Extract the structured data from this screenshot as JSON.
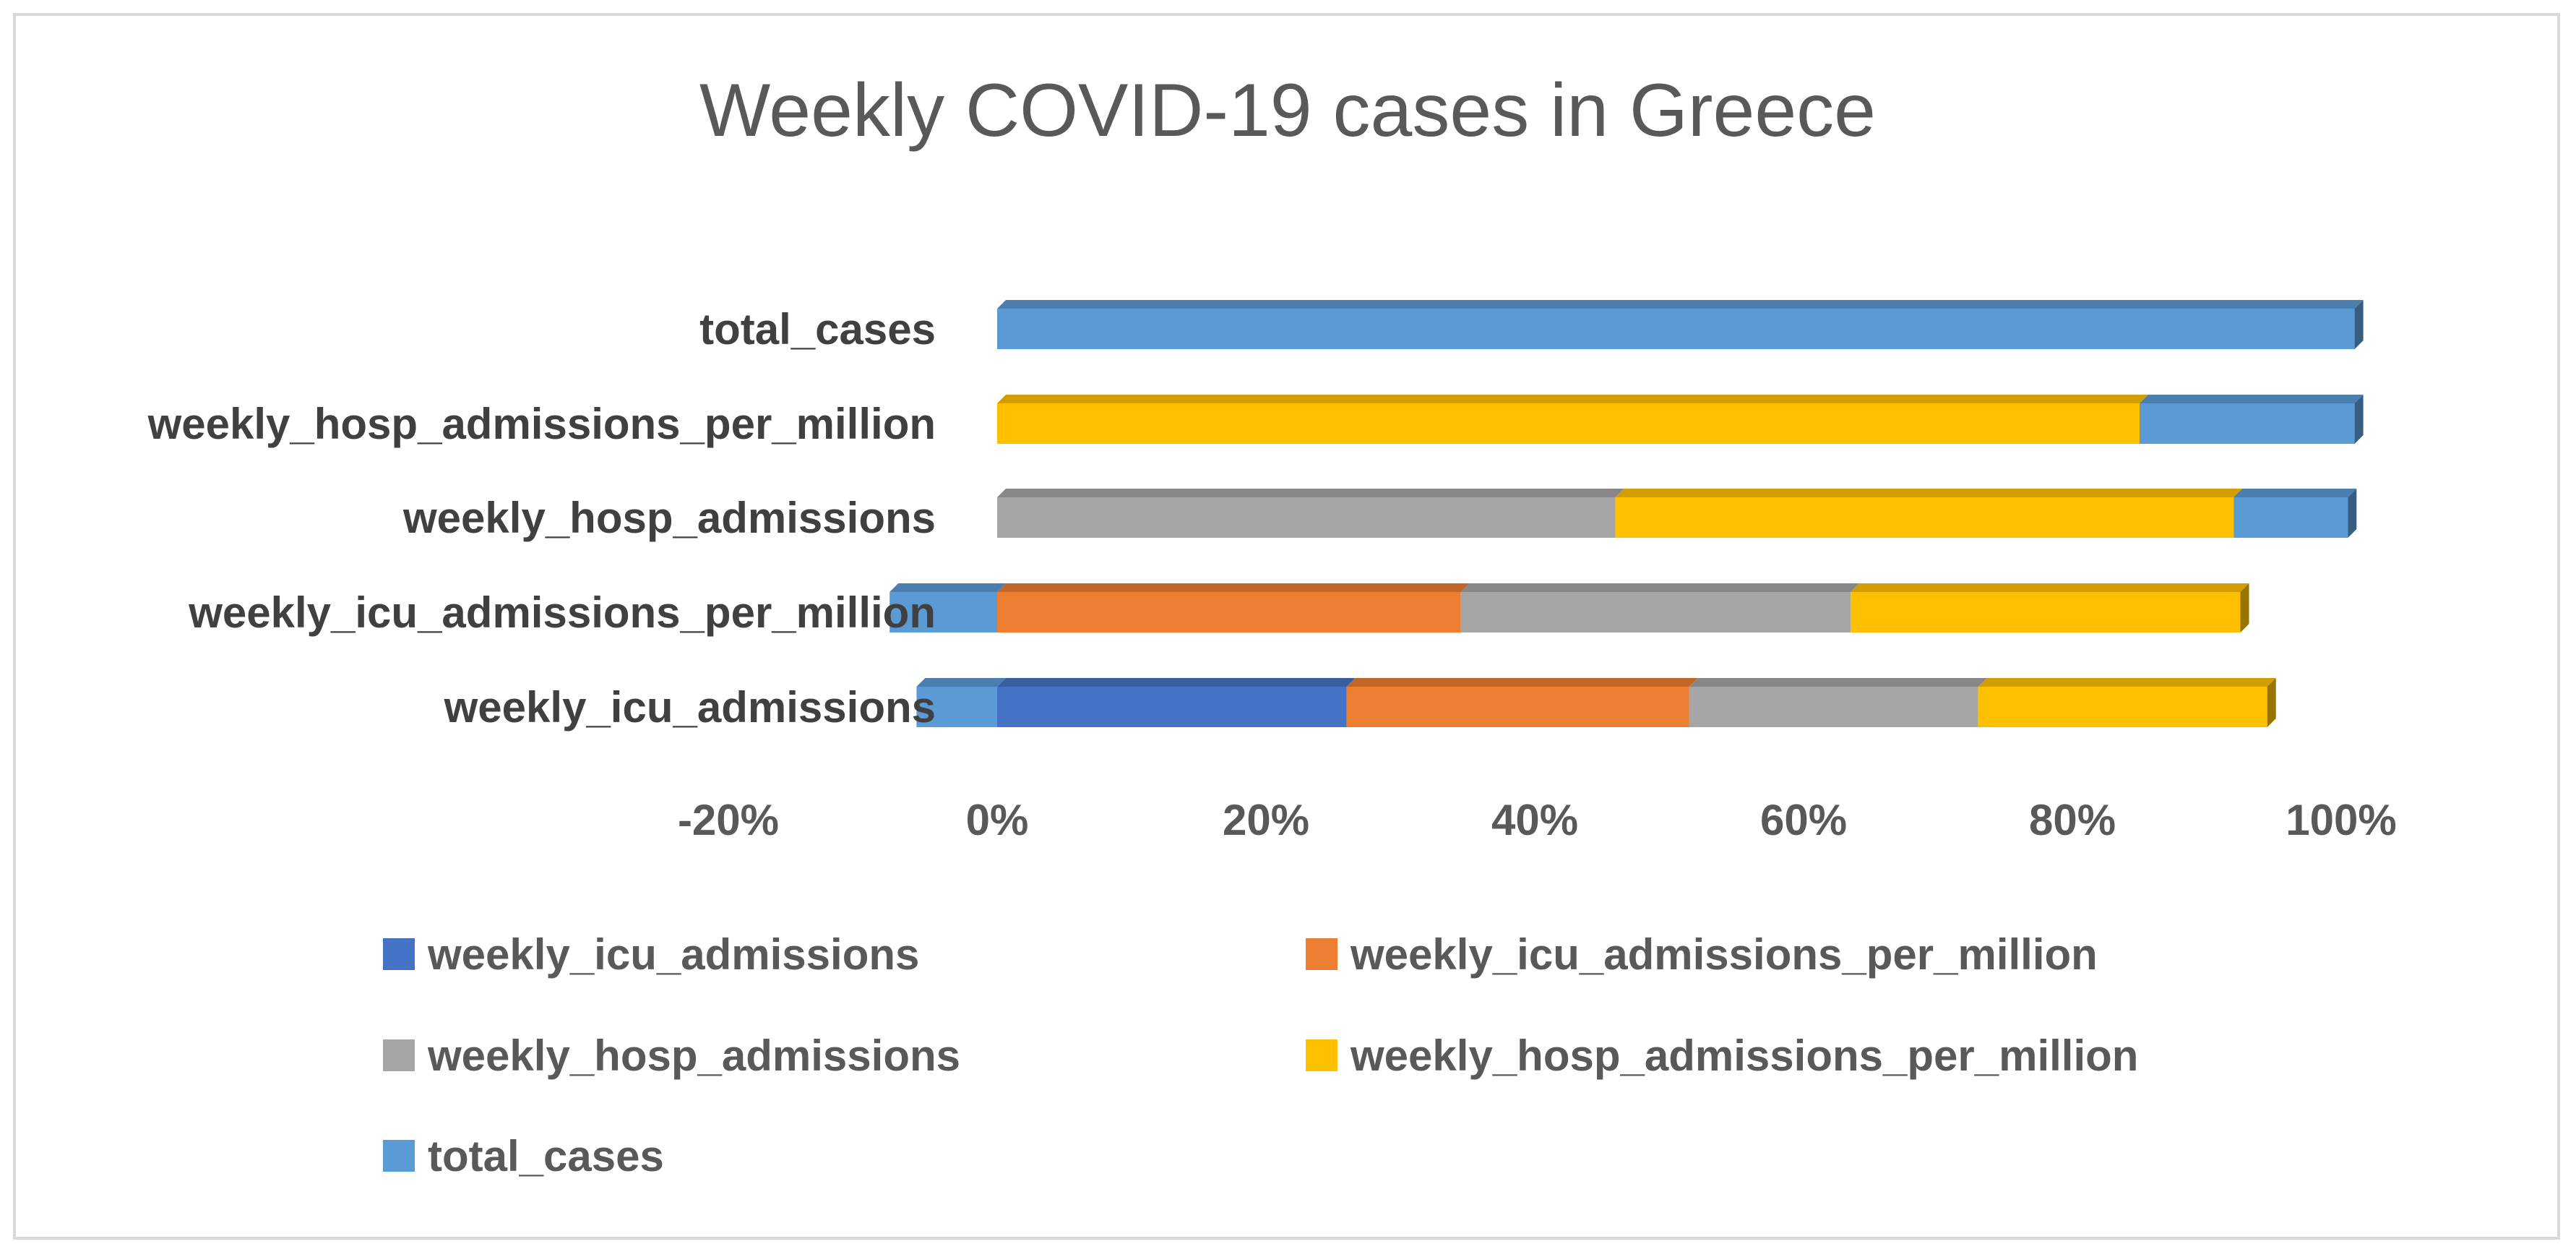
{
  "chart_data": {
    "type": "bar",
    "orientation": "horizontal",
    "stacking": "percent",
    "title": "Weekly COVID-19 cases in Greece",
    "categories": [
      "weekly_icu_admissions",
      "weekly_icu_admissions_per_million",
      "weekly_hosp_admissions",
      "weekly_hosp_admissions_per_million",
      "total_cases"
    ],
    "series": [
      {
        "name": "weekly_icu_admissions",
        "color": "#4472C4",
        "values": [
          26,
          0,
          0,
          0,
          0
        ]
      },
      {
        "name": "weekly_icu_admissions_per_million",
        "color": "#ED7D31",
        "values": [
          25.5,
          34.5,
          0,
          0,
          0
        ]
      },
      {
        "name": "weekly_hosp_admissions",
        "color": "#A5A5A5",
        "values": [
          21.5,
          29,
          46,
          0,
          0
        ]
      },
      {
        "name": "weekly_hosp_admissions_per_million",
        "color": "#FFC000",
        "values": [
          21.5,
          29,
          46,
          85,
          0
        ]
      },
      {
        "name": "total_cases",
        "color": "#5B9BD5",
        "values": [
          -6,
          -8,
          8.5,
          16,
          101
        ]
      }
    ],
    "xaxis": {
      "min": -20,
      "max": 100,
      "step": 20,
      "tick_labels": [
        "-20%",
        "0%",
        "20%",
        "40%",
        "60%",
        "80%",
        "100%"
      ]
    },
    "legend": {
      "position": "bottom",
      "order": [
        "weekly_icu_admissions",
        "weekly_icu_admissions_per_million",
        "weekly_hosp_admissions",
        "weekly_hosp_admissions_per_million",
        "total_cases"
      ]
    },
    "gridlines": false
  }
}
